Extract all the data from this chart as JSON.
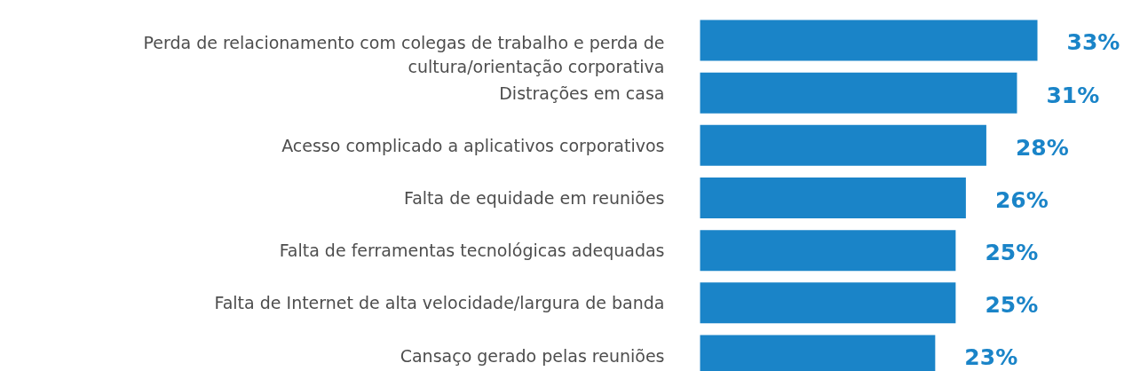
{
  "chart_data": {
    "type": "bar",
    "orientation": "horizontal",
    "categories": [
      "Perda de relacionamento com colegas de trabalho e perda de cultura/orientação corporativa",
      "Distrações em casa",
      "Acesso complicado a aplicativos corporativos",
      "Falta de equidade em reuniões",
      "Falta de ferramentas tecnológicas adequadas",
      "Falta de Internet de alta velocidade/largura de banda",
      "Cansaço gerado pelas reuniões"
    ],
    "values": [
      33,
      31,
      28,
      26,
      25,
      25,
      23
    ],
    "value_labels": [
      "33%",
      "31%",
      "28%",
      "26%",
      "25%",
      "25%",
      "23%"
    ],
    "color": "#1a84c8"
  }
}
